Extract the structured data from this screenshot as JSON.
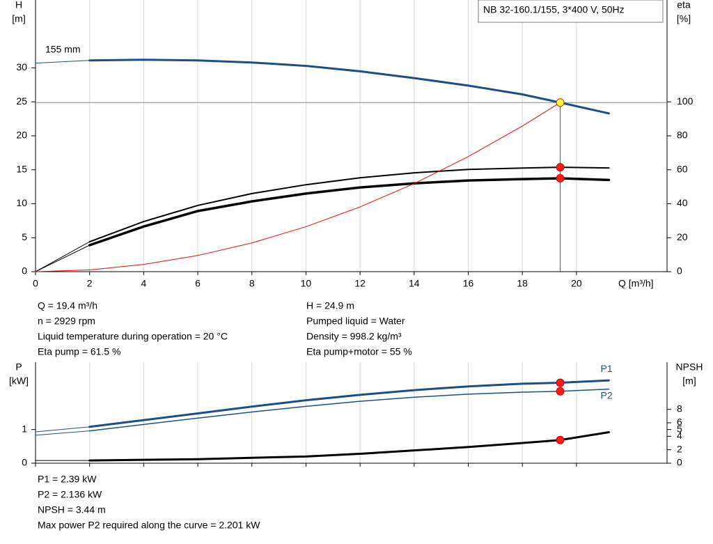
{
  "chart_data": [
    {
      "type": "line",
      "title": "NB 32-160.1/155, 3*400 V, 50Hz",
      "curve_label": "155 mm",
      "y_label": [
        "H",
        "[m]"
      ],
      "y2_label": [
        "eta",
        "[%]"
      ],
      "x_label": "Q [m³/h]",
      "x": [
        0,
        2,
        4,
        6,
        8,
        10,
        12,
        14,
        16,
        18,
        19.4,
        21.2
      ],
      "xlim": [
        0,
        23.35
      ],
      "xticks": [
        0,
        2,
        4,
        6,
        8,
        10,
        12,
        14,
        16,
        18,
        20
      ],
      "ylim": [
        0,
        40
      ],
      "yticks": [
        0,
        5,
        10,
        15,
        20,
        25,
        30
      ],
      "y2lim": [
        0,
        160
      ],
      "y2ticks": [
        0,
        20,
        40,
        60,
        80,
        100
      ],
      "grid": true,
      "series": [
        {
          "color": "#1b4f8a",
          "values": [
            30.7,
            31.1,
            31.2,
            31.1,
            30.8,
            30.3,
            29.5,
            28.5,
            27.4,
            26.1,
            24.9,
            23.3
          ]
        },
        {
          "color": "#000000",
          "axis": "y2",
          "values": [
            0,
            17.6,
            29.5,
            39,
            46,
            51.2,
            55.3,
            58.2,
            60.2,
            61,
            61.5,
            61.1
          ]
        },
        {
          "color": "#000000",
          "axis": "y2",
          "values": [
            0,
            15.6,
            26.6,
            35.7,
            41.4,
            46,
            49.6,
            52,
            53.7,
            54.5,
            55,
            54
          ]
        },
        {
          "color": "#ff0000",
          "values": [
            0,
            0.26,
            1.06,
            2.38,
            4.23,
            6.62,
            9.53,
            12.97,
            16.94,
            21.44,
            24.9,
            null
          ]
        }
      ],
      "operating_index": 10,
      "info_left": [
        "Q = 19.4 m³/h",
        "n = 2929 rpm",
        "Liquid temperature during operation = 20 °C",
        "Eta pump = 61.5 %"
      ],
      "info_right": [
        "H = 24.9 m",
        "Pumped liquid = Water",
        "Density = 998.2 kg/m³",
        "Eta pump+motor = 55 %"
      ]
    },
    {
      "type": "line",
      "y_label": [
        "P",
        "[kW]"
      ],
      "y2_label": [
        "NPSH",
        "[m]"
      ],
      "x": [
        0,
        2,
        4,
        6,
        8,
        10,
        12,
        14,
        16,
        18,
        19.4,
        21.2
      ],
      "xlim": [
        0,
        23.35
      ],
      "ylim": [
        0,
        3
      ],
      "yticks": [
        0,
        1
      ],
      "y2lim": [
        0,
        15
      ],
      "y2ticks": [
        0,
        2,
        4,
        5,
        6,
        8
      ],
      "series": [
        {
          "name": "P1",
          "color": "#1b4f8a",
          "values": [
            0.93,
            1.08,
            1.28,
            1.48,
            1.68,
            1.87,
            2.03,
            2.17,
            2.28,
            2.36,
            2.39,
            2.46
          ]
        },
        {
          "name": "P2",
          "color": "#1b4f8a",
          "values": [
            0.83,
            0.96,
            1.15,
            1.34,
            1.52,
            1.69,
            1.84,
            1.96,
            2.05,
            2.11,
            2.136,
            2.2
          ]
        },
        {
          "color": "#000000",
          "axis": "y2",
          "values": [
            0.4,
            0.4,
            0.5,
            0.6,
            0.8,
            1.0,
            1.4,
            1.9,
            2.4,
            3.0,
            3.44,
            4.6
          ]
        }
      ],
      "operating_index": 10,
      "info": [
        "P1 = 2.39 kW",
        "P2 = 2.136 kW",
        "NPSH = 3.44 m",
        "Max power P2 required along the curve = 2.201 kW"
      ]
    }
  ]
}
